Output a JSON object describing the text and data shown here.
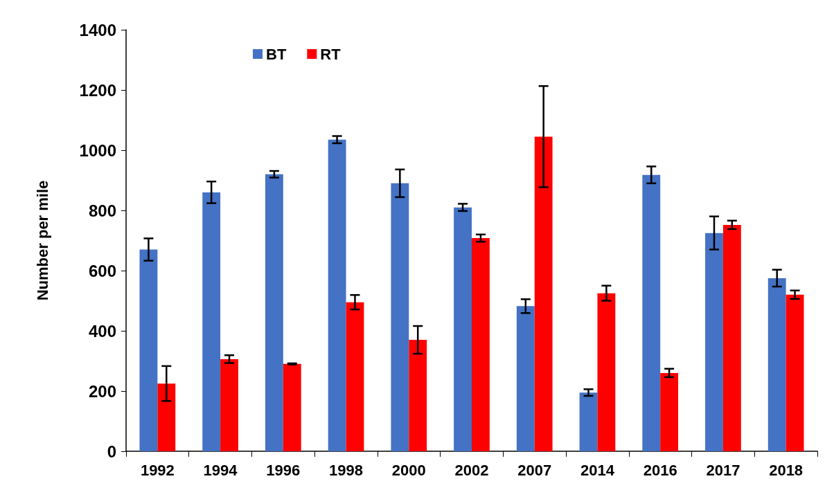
{
  "chart_data": {
    "type": "bar",
    "ylabel": "Number per mile",
    "categories": [
      "1992",
      "1994",
      "1996",
      "1998",
      "2000",
      "2002",
      "2007",
      "2014",
      "2016",
      "2017",
      "2018"
    ],
    "series": [
      {
        "name": "BT",
        "color": "#4472c4",
        "values": [
          670,
          860,
          920,
          1035,
          890,
          810,
          482,
          195,
          918,
          725,
          575
        ],
        "errors": [
          37,
          36,
          11,
          12,
          46,
          12,
          23,
          11,
          28,
          55,
          28
        ]
      },
      {
        "name": "RT",
        "color": "#ff0000",
        "values": [
          225,
          306,
          290,
          495,
          370,
          708,
          1045,
          525,
          260,
          752,
          520
        ],
        "errors": [
          58,
          13,
          2,
          24,
          46,
          12,
          168,
          25,
          14,
          14,
          14
        ]
      }
    ],
    "ylim": [
      0,
      1400
    ],
    "yticks": [
      0,
      200,
      400,
      600,
      800,
      1000,
      1200,
      1400
    ],
    "grid": false,
    "legend": "top left"
  }
}
